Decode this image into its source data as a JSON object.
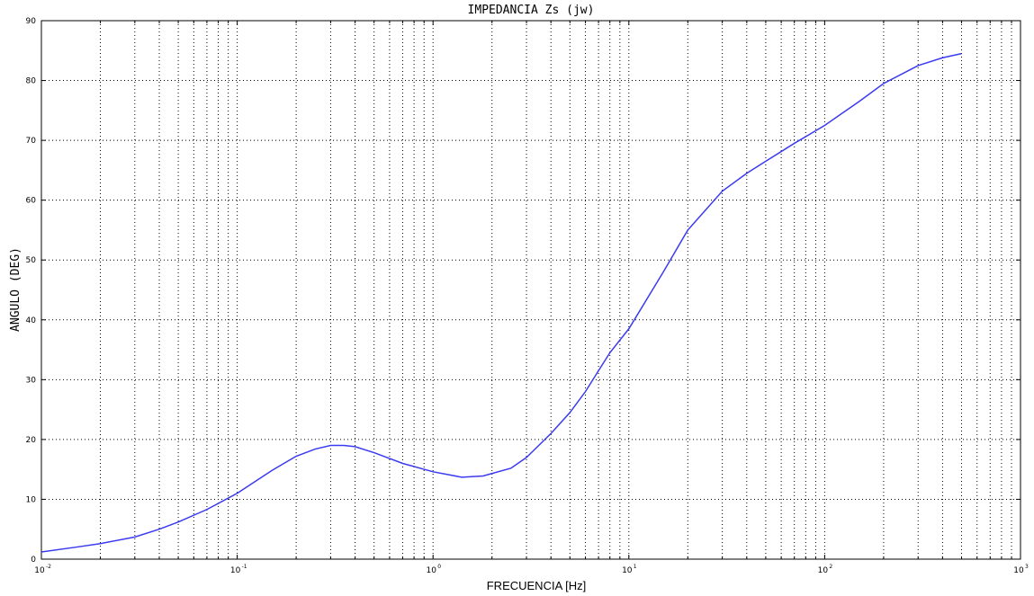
{
  "chart_data": {
    "type": "line",
    "title": "IMPEDANCIA Zs (jw)",
    "xlabel": "FRECUENCIA [Hz]",
    "ylabel": "ANGULO (DEG)",
    "xscale": "log",
    "xlim": [
      0.01,
      1000
    ],
    "ylim": [
      0,
      90
    ],
    "x_ticks": [
      0.01,
      0.1,
      1,
      10,
      100,
      1000
    ],
    "x_tick_labels": [
      {
        "base": "10",
        "exp": "-2"
      },
      {
        "base": "10",
        "exp": "-1"
      },
      {
        "base": "10",
        "exp": "0"
      },
      {
        "base": "10",
        "exp": "1"
      },
      {
        "base": "10",
        "exp": "2"
      },
      {
        "base": "10",
        "exp": "3"
      }
    ],
    "y_ticks": [
      "0",
      "10",
      "20",
      "30",
      "40",
      "50",
      "60",
      "70",
      "80",
      "90"
    ],
    "grid": true,
    "line_color": "#3a3af0",
    "series": [
      {
        "x": [
          0.01,
          0.015,
          0.02,
          0.03,
          0.04,
          0.05,
          0.07,
          0.1,
          0.15,
          0.2,
          0.25,
          0.3,
          0.35,
          0.4,
          0.5,
          0.7,
          1.0,
          1.4,
          1.8,
          2.5,
          3.0,
          4.0,
          5.0,
          6.0,
          7.0,
          8.0,
          10,
          15,
          20,
          30,
          40,
          50,
          70,
          100,
          150,
          200,
          300,
          400,
          500
        ],
        "y": [
          1.2,
          2.0,
          2.6,
          3.7,
          5.0,
          6.2,
          8.3,
          11.0,
          14.8,
          17.2,
          18.4,
          19.0,
          19.0,
          18.8,
          17.8,
          16.0,
          14.6,
          13.7,
          13.9,
          15.2,
          17.0,
          21.0,
          24.5,
          28.0,
          31.5,
          34.5,
          38.5,
          48.0,
          55.0,
          61.5,
          64.5,
          66.5,
          69.5,
          72.5,
          76.5,
          79.5,
          82.5,
          83.8,
          84.5
        ]
      }
    ]
  }
}
